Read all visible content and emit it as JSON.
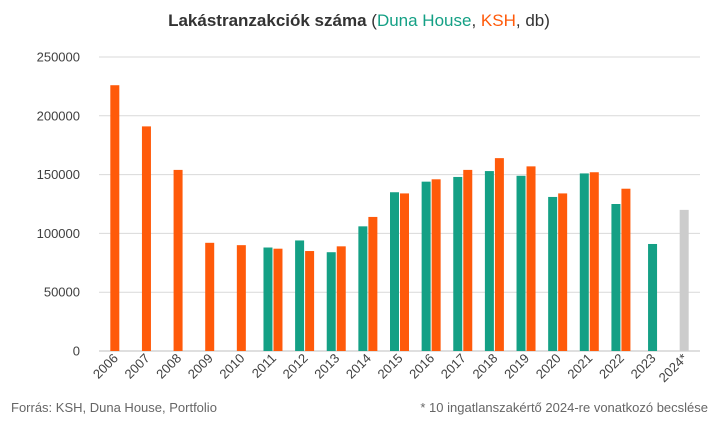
{
  "title": {
    "main": "Lakástranzakciók száma",
    "open": " (",
    "series1": "Duna House",
    "sep": ", ",
    "series2": "KSH",
    "suffix": ", db)"
  },
  "footer": {
    "source": "Forrás: KSH, Duna House, Portfolio",
    "note": "* 10 ingatlanszakértő  2024-re vonatkozó becslése"
  },
  "colors": {
    "duna_house": "#14a085",
    "ksh": "#ff5a0a",
    "estimate": "#cccccc",
    "grid": "#d9d9d9"
  },
  "chart_data": {
    "type": "bar",
    "categories": [
      "2006",
      "2007",
      "2008",
      "2009",
      "2010",
      "2011",
      "2012",
      "2013",
      "2014",
      "2015",
      "2016",
      "2017",
      "2018",
      "2019",
      "2020",
      "2021",
      "2022",
      "2023",
      "2024*"
    ],
    "series": [
      {
        "name": "Duna House",
        "color": "#14a085",
        "values": [
          null,
          null,
          null,
          null,
          null,
          88000,
          94000,
          84000,
          106000,
          135000,
          144000,
          148000,
          153000,
          149000,
          131000,
          151000,
          125000,
          91000,
          null
        ]
      },
      {
        "name": "KSH",
        "color": "#ff5a0a",
        "values": [
          226000,
          191000,
          154000,
          92000,
          90000,
          87000,
          85000,
          89000,
          114000,
          134000,
          146000,
          154000,
          164000,
          157000,
          134000,
          152000,
          138000,
          null,
          null
        ]
      },
      {
        "name": "",
        "color": "#cccccc",
        "values": [
          null,
          null,
          null,
          null,
          null,
          null,
          null,
          null,
          null,
          null,
          null,
          null,
          null,
          null,
          null,
          null,
          null,
          null,
          120000
        ]
      }
    ],
    "yticks": [
      0,
      50000,
      100000,
      150000,
      200000,
      250000
    ],
    "ylim": [
      0,
      250000
    ],
    "grid": true
  }
}
